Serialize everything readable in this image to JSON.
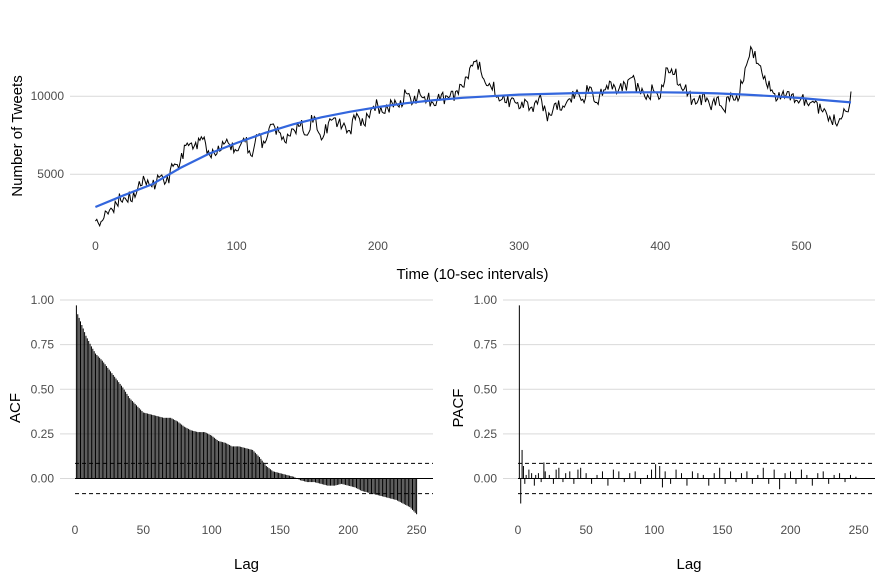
{
  "chart_data": [
    {
      "type": "line",
      "id": "tweets",
      "title": "",
      "xlabel": "Time (10-sec intervals)",
      "ylabel": "Number of Tweets",
      "xlim": [
        -18,
        552
      ],
      "ylim": [
        1300,
        13600
      ],
      "x_ticks": [
        0,
        100,
        200,
        300,
        400,
        500
      ],
      "y_ticks": [
        5000,
        10000
      ],
      "y_grid": true,
      "x_grid": false,
      "trend_color": "#3366dd",
      "series": [
        {
          "kind": "observed",
          "points": [
            [
              0,
              2000
            ],
            [
              3,
              1700
            ],
            [
              6,
              2200
            ],
            [
              10,
              2700
            ],
            [
              15,
              3100
            ],
            [
              20,
              3500
            ],
            [
              25,
              3300
            ],
            [
              30,
              4100
            ],
            [
              35,
              4600
            ],
            [
              40,
              4200
            ],
            [
              45,
              4800
            ],
            [
              50,
              4500
            ],
            [
              55,
              5500
            ],
            [
              60,
              5800
            ],
            [
              65,
              7000
            ],
            [
              70,
              6800
            ],
            [
              75,
              7400
            ],
            [
              80,
              6500
            ],
            [
              85,
              6200
            ],
            [
              90,
              7100
            ],
            [
              95,
              6900
            ],
            [
              100,
              6500
            ],
            [
              105,
              7300
            ],
            [
              110,
              6200
            ],
            [
              115,
              7500
            ],
            [
              120,
              7000
            ],
            [
              125,
              8200
            ],
            [
              130,
              7700
            ],
            [
              135,
              7000
            ],
            [
              140,
              7900
            ],
            [
              145,
              8100
            ],
            [
              150,
              7500
            ],
            [
              155,
              8700
            ],
            [
              160,
              7200
            ],
            [
              165,
              8300
            ],
            [
              170,
              8600
            ],
            [
              175,
              8100
            ],
            [
              180,
              7800
            ],
            [
              185,
              8900
            ],
            [
              190,
              8200
            ],
            [
              195,
              9100
            ],
            [
              200,
              9400
            ],
            [
              205,
              8900
            ],
            [
              210,
              9600
            ],
            [
              215,
              9300
            ],
            [
              220,
              10200
            ],
            [
              225,
              9600
            ],
            [
              230,
              10100
            ],
            [
              235,
              9800
            ],
            [
              240,
              9400
            ],
            [
              245,
              10100
            ],
            [
              250,
              9900
            ],
            [
              255,
              10300
            ],
            [
              260,
              10600
            ],
            [
              265,
              11800
            ],
            [
              270,
              12300
            ],
            [
              275,
              11100
            ],
            [
              280,
              10600
            ],
            [
              285,
              10000
            ],
            [
              290,
              9600
            ],
            [
              295,
              9900
            ],
            [
              300,
              9200
            ],
            [
              305,
              9700
            ],
            [
              310,
              9000
            ],
            [
              315,
              10100
            ],
            [
              320,
              8400
            ],
            [
              325,
              9500
            ],
            [
              330,
              9100
            ],
            [
              335,
              9800
            ],
            [
              340,
              10200
            ],
            [
              345,
              9800
            ],
            [
              350,
              10600
            ],
            [
              355,
              9600
            ],
            [
              360,
              10400
            ],
            [
              365,
              10900
            ],
            [
              370,
              10300
            ],
            [
              375,
              10800
            ],
            [
              380,
              11200
            ],
            [
              385,
              10500
            ],
            [
              390,
              9800
            ],
            [
              395,
              10400
            ],
            [
              400,
              9900
            ],
            [
              405,
              11800
            ],
            [
              410,
              11400
            ],
            [
              415,
              10500
            ],
            [
              420,
              10200
            ],
            [
              425,
              9500
            ],
            [
              430,
              10100
            ],
            [
              435,
              9400
            ],
            [
              440,
              9900
            ],
            [
              445,
              9100
            ],
            [
              450,
              10200
            ],
            [
              455,
              9700
            ],
            [
              460,
              11800
            ],
            [
              465,
              13000
            ],
            [
              470,
              12000
            ],
            [
              475,
              10800
            ],
            [
              480,
              10200
            ],
            [
              485,
              9800
            ],
            [
              490,
              10300
            ],
            [
              495,
              9600
            ],
            [
              500,
              9900
            ],
            [
              505,
              9400
            ],
            [
              510,
              9700
            ],
            [
              515,
              9000
            ],
            [
              520,
              8700
            ],
            [
              525,
              8100
            ],
            [
              530,
              9200
            ],
            [
              533,
              9000
            ],
            [
              535,
              10300
            ]
          ]
        },
        {
          "kind": "smooth trend",
          "points": [
            [
              0,
              2900
            ],
            [
              20,
              3650
            ],
            [
              40,
              4350
            ],
            [
              60,
              5400
            ],
            [
              80,
              6300
            ],
            [
              100,
              7000
            ],
            [
              120,
              7650
            ],
            [
              140,
              8200
            ],
            [
              160,
              8650
            ],
            [
              180,
              9000
            ],
            [
              200,
              9300
            ],
            [
              220,
              9550
            ],
            [
              240,
              9750
            ],
            [
              260,
              9900
            ],
            [
              280,
              10000
            ],
            [
              300,
              10100
            ],
            [
              320,
              10150
            ],
            [
              340,
              10200
            ],
            [
              360,
              10230
            ],
            [
              380,
              10250
            ],
            [
              400,
              10250
            ],
            [
              420,
              10230
            ],
            [
              440,
              10180
            ],
            [
              460,
              10100
            ],
            [
              480,
              10000
            ],
            [
              500,
              9880
            ],
            [
              520,
              9720
            ],
            [
              535,
              9600
            ]
          ]
        }
      ]
    },
    {
      "type": "bar",
      "id": "acf",
      "title": "",
      "xlabel": "Lag",
      "ylabel": "ACF",
      "xlim": [
        -11,
        262
      ],
      "ylim": [
        -0.21,
        1.0
      ],
      "x_ticks": [
        0,
        50,
        100,
        150,
        200,
        250
      ],
      "y_ticks": [
        0.0,
        0.25,
        0.5,
        0.75,
        1.0
      ],
      "y_grid": true,
      "ci": [
        0.085,
        -0.085
      ],
      "anchors": [
        [
          1,
          0.97
        ],
        [
          2,
          0.92
        ],
        [
          5,
          0.86
        ],
        [
          8,
          0.8
        ],
        [
          12,
          0.74
        ],
        [
          15,
          0.7
        ],
        [
          20,
          0.66
        ],
        [
          25,
          0.61
        ],
        [
          30,
          0.56
        ],
        [
          35,
          0.51
        ],
        [
          40,
          0.45
        ],
        [
          45,
          0.41
        ],
        [
          50,
          0.37
        ],
        [
          55,
          0.36
        ],
        [
          60,
          0.35
        ],
        [
          65,
          0.34
        ],
        [
          70,
          0.34
        ],
        [
          75,
          0.32
        ],
        [
          80,
          0.29
        ],
        [
          85,
          0.27
        ],
        [
          90,
          0.26
        ],
        [
          95,
          0.26
        ],
        [
          100,
          0.24
        ],
        [
          105,
          0.21
        ],
        [
          110,
          0.2
        ],
        [
          115,
          0.18
        ],
        [
          120,
          0.18
        ],
        [
          125,
          0.17
        ],
        [
          130,
          0.16
        ],
        [
          135,
          0.12
        ],
        [
          140,
          0.07
        ],
        [
          145,
          0.04
        ],
        [
          150,
          0.03
        ],
        [
          155,
          0.02
        ],
        [
          160,
          0.01
        ],
        [
          165,
          -0.01
        ],
        [
          170,
          -0.02
        ],
        [
          175,
          -0.02
        ],
        [
          180,
          -0.03
        ],
        [
          185,
          -0.04
        ],
        [
          190,
          -0.04
        ],
        [
          195,
          -0.03
        ],
        [
          200,
          -0.04
        ],
        [
          205,
          -0.05
        ],
        [
          210,
          -0.07
        ],
        [
          215,
          -0.08
        ],
        [
          220,
          -0.09
        ],
        [
          225,
          -0.1
        ],
        [
          230,
          -0.11
        ],
        [
          235,
          -0.12
        ],
        [
          240,
          -0.14
        ],
        [
          245,
          -0.16
        ],
        [
          250,
          -0.2
        ]
      ]
    },
    {
      "type": "bar",
      "id": "pacf",
      "title": "",
      "xlabel": "Lag",
      "ylabel": "PACF",
      "xlim": [
        -11,
        262
      ],
      "ylim": [
        -0.21,
        1.0
      ],
      "x_ticks": [
        0,
        50,
        100,
        150,
        200,
        250
      ],
      "y_ticks": [
        0.0,
        0.25,
        0.5,
        0.75,
        1.0
      ],
      "y_grid": true,
      "ci": [
        0.085,
        -0.085
      ],
      "spikes": [
        [
          1,
          0.97
        ],
        [
          2,
          -0.14
        ],
        [
          3,
          0.16
        ],
        [
          4,
          0.07
        ],
        [
          5,
          -0.03
        ],
        [
          6,
          0.02
        ],
        [
          8,
          0.05
        ],
        [
          10,
          0.03
        ],
        [
          12,
          -0.04
        ],
        [
          13,
          0.02
        ],
        [
          15,
          0.03
        ],
        [
          17,
          -0.02
        ],
        [
          19,
          0.09
        ],
        [
          20,
          0.04
        ],
        [
          23,
          0.02
        ],
        [
          26,
          -0.03
        ],
        [
          28,
          0.05
        ],
        [
          30,
          0.06
        ],
        [
          33,
          -0.02
        ],
        [
          35,
          0.03
        ],
        [
          38,
          0.04
        ],
        [
          41,
          -0.03
        ],
        [
          44,
          0.05
        ],
        [
          46,
          0.06
        ],
        [
          50,
          0.03
        ],
        [
          54,
          -0.03
        ],
        [
          58,
          0.02
        ],
        [
          62,
          0.04
        ],
        [
          66,
          -0.04
        ],
        [
          70,
          0.05
        ],
        [
          74,
          0.04
        ],
        [
          78,
          -0.02
        ],
        [
          82,
          0.03
        ],
        [
          86,
          0.04
        ],
        [
          90,
          -0.03
        ],
        [
          95,
          0.02
        ],
        [
          98,
          0.05
        ],
        [
          101,
          0.08
        ],
        [
          104,
          0.07
        ],
        [
          106,
          -0.05
        ],
        [
          108,
          0.04
        ],
        [
          112,
          -0.03
        ],
        [
          116,
          0.05
        ],
        [
          120,
          0.03
        ],
        [
          124,
          -0.04
        ],
        [
          128,
          0.04
        ],
        [
          132,
          0.03
        ],
        [
          136,
          0.02
        ],
        [
          140,
          -0.04
        ],
        [
          144,
          0.03
        ],
        [
          148,
          0.06
        ],
        [
          152,
          -0.03
        ],
        [
          156,
          0.04
        ],
        [
          160,
          -0.02
        ],
        [
          164,
          0.03
        ],
        [
          168,
          0.04
        ],
        [
          172,
          -0.03
        ],
        [
          176,
          0.02
        ],
        [
          180,
          0.06
        ],
        [
          184,
          -0.03
        ],
        [
          188,
          0.05
        ],
        [
          192,
          -0.06
        ],
        [
          196,
          0.03
        ],
        [
          200,
          0.04
        ],
        [
          204,
          -0.03
        ],
        [
          208,
          0.05
        ],
        [
          212,
          0.02
        ],
        [
          216,
          -0.04
        ],
        [
          220,
          0.03
        ],
        [
          224,
          0.04
        ],
        [
          228,
          -0.03
        ],
        [
          232,
          0.02
        ],
        [
          236,
          0.03
        ],
        [
          240,
          -0.02
        ],
        [
          244,
          0.02
        ],
        [
          248,
          0.01
        ]
      ]
    }
  ]
}
